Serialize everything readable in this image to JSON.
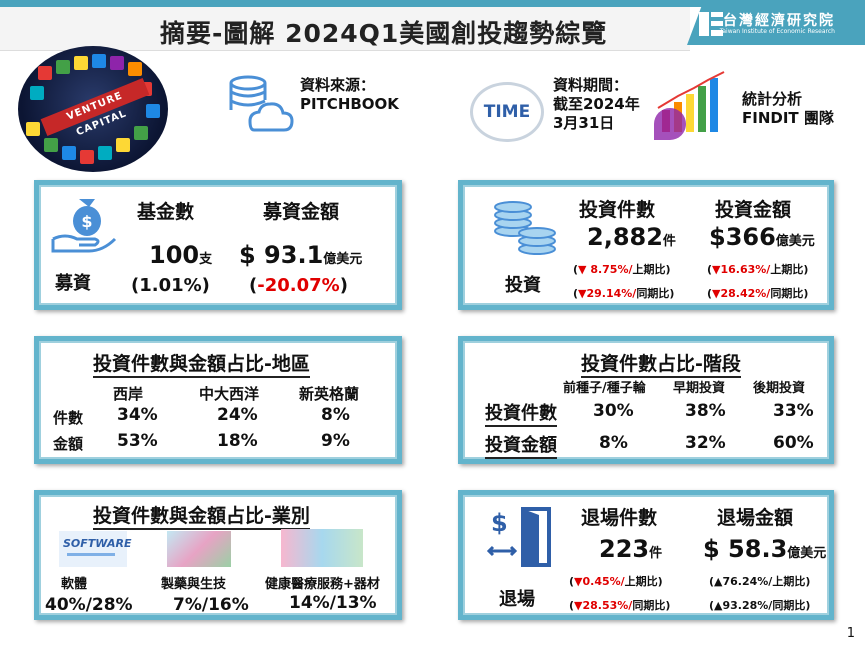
{
  "header": {
    "title": "摘要-圖解 2024Q1美國創投趨勢綜覽",
    "logo_cn": "台灣經濟研究院",
    "logo_en": "Taiwan Institute of Economic Research"
  },
  "intro": {
    "image_text": "VENTURE CAPITAL",
    "source_label": "資料來源：",
    "source_value": "PITCHBOOK",
    "time_logo_text": "TIME",
    "period_label": "資料期間：",
    "period_value1": "截至2024年",
    "period_value2": "3月31日",
    "team_label": "統計分析",
    "team_value": "FINDIT 團隊"
  },
  "fundraising": {
    "section_label": "募資",
    "col1_title": "基金數",
    "col1_value": "100",
    "col1_unit": "支",
    "col1_sub": "(1.01%)",
    "col2_title": "募資金額",
    "col2_value": "$ 93.1",
    "col2_unit": "億美元",
    "col2_sub_open": "(",
    "col2_sub": "-20.07%",
    "col2_sub_close": ")"
  },
  "investment": {
    "section_label": "投資",
    "col1_title": "投資件數",
    "col1_value": "2,882",
    "col1_unit": "件",
    "col1_qoq_pct": "▼ 8.75%/",
    "col1_qoq_label": "上期比",
    "col1_yoy_pct": "▼29.14%/",
    "col1_yoy_label": "同期比",
    "col2_title": "投資金額",
    "col2_value": "$366",
    "col2_unit": "億美元",
    "col2_qoq_pct": "▼16.63%/",
    "col2_qoq_label": "上期比",
    "col2_yoy_pct": "▼28.42%/",
    "col2_yoy_label": "同期比"
  },
  "region": {
    "title": "投資件數與金額占比-地區",
    "headers": [
      "西岸",
      "中大西洋",
      "新英格蘭"
    ],
    "rows": [
      {
        "label": "件數",
        "values": [
          "34%",
          "24%",
          "8%"
        ]
      },
      {
        "label": "金額",
        "values": [
          "53%",
          "18%",
          "9%"
        ]
      }
    ]
  },
  "stage": {
    "title": "投資件數占比-階段",
    "headers": [
      "前種子/種子輪",
      "早期投資",
      "後期投資"
    ],
    "rows": [
      {
        "label": "投資件數",
        "values": [
          "30%",
          "38%",
          "33%"
        ]
      },
      {
        "label": "投資金額",
        "values": [
          "8%",
          "32%",
          "60%"
        ]
      }
    ]
  },
  "industry": {
    "title": "投資件數與金額占比-業別",
    "software_logo": "SOFTWARE",
    "items": [
      {
        "label": "軟體",
        "value": "40%/28%"
      },
      {
        "label": "製藥與生技",
        "value": "7%/16%"
      },
      {
        "label": "健康醫療服務+器材",
        "value": "14%/13%"
      }
    ]
  },
  "exit": {
    "section_label": "退場",
    "col1_title": "退場件數",
    "col1_value": "223",
    "col1_unit": "件",
    "col1_qoq_pct": "▼0.45%/",
    "col1_qoq_label": "上期比",
    "col1_yoy_pct": "▼28.53%/",
    "col1_yoy_label": "同期比",
    "col2_title": "退場金額",
    "col2_value": "$ 58.3",
    "col2_unit": "億美元",
    "col2_qoq_pct": "▲76.24%/",
    "col2_qoq_label": "上期比",
    "col2_yoy_pct": "▲93.28%/",
    "col2_yoy_label": "同期比"
  },
  "page_number": "1",
  "colors": {
    "accent": "#4aa3bd",
    "frame": "#63b4cc",
    "negative": "#e00000",
    "icon_blue": "#4a8fd6"
  }
}
